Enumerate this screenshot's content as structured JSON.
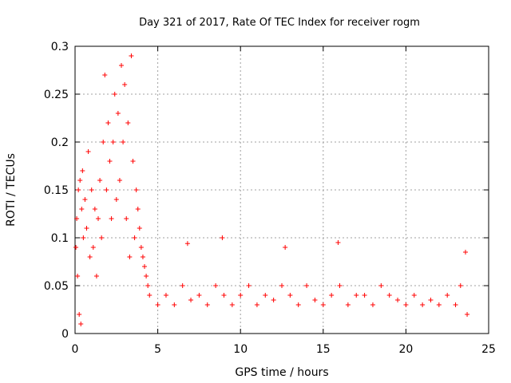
{
  "chart_data": {
    "type": "scatter",
    "title": "Day 321 of 2017, Rate Of TEC Index for receiver rogm",
    "xlabel": "GPS time / hours",
    "ylabel": "ROTI / TECUs",
    "xlim": [
      0,
      25
    ],
    "ylim": [
      0,
      0.3
    ],
    "x_ticks": [
      0,
      5,
      10,
      15,
      20,
      25
    ],
    "y_ticks": [
      0,
      0.05,
      0.1,
      0.15,
      0.2,
      0.25,
      0.3
    ],
    "x_tick_labels": [
      "0",
      "5",
      "10",
      "15",
      "20",
      "25"
    ],
    "y_tick_labels": [
      "0",
      "0.05",
      "0.1",
      "0.15",
      "0.2",
      "0.25",
      "0.3"
    ],
    "grid": true,
    "marker": "+",
    "marker_color": "#ff0000",
    "series": [
      {
        "name": "ROTI",
        "points": [
          [
            0.05,
            0.09
          ],
          [
            0.1,
            0.12
          ],
          [
            0.15,
            0.06
          ],
          [
            0.2,
            0.15
          ],
          [
            0.25,
            0.02
          ],
          [
            0.3,
            0.16
          ],
          [
            0.35,
            0.01
          ],
          [
            0.4,
            0.13
          ],
          [
            0.45,
            0.17
          ],
          [
            0.5,
            0.1
          ],
          [
            0.6,
            0.14
          ],
          [
            0.7,
            0.11
          ],
          [
            0.8,
            0.19
          ],
          [
            0.9,
            0.08
          ],
          [
            1.0,
            0.15
          ],
          [
            1.1,
            0.09
          ],
          [
            1.2,
            0.13
          ],
          [
            1.3,
            0.06
          ],
          [
            1.4,
            0.12
          ],
          [
            1.5,
            0.16
          ],
          [
            1.6,
            0.1
          ],
          [
            1.7,
            0.2
          ],
          [
            1.8,
            0.27
          ],
          [
            1.9,
            0.15
          ],
          [
            2.0,
            0.22
          ],
          [
            2.1,
            0.18
          ],
          [
            2.2,
            0.12
          ],
          [
            2.3,
            0.2
          ],
          [
            2.4,
            0.25
          ],
          [
            2.5,
            0.14
          ],
          [
            2.6,
            0.23
          ],
          [
            2.7,
            0.16
          ],
          [
            2.8,
            0.28
          ],
          [
            2.9,
            0.2
          ],
          [
            3.0,
            0.26
          ],
          [
            3.1,
            0.12
          ],
          [
            3.2,
            0.22
          ],
          [
            3.3,
            0.08
          ],
          [
            3.4,
            0.29
          ],
          [
            3.5,
            0.18
          ],
          [
            3.6,
            0.1
          ],
          [
            3.7,
            0.15
          ],
          [
            3.8,
            0.13
          ],
          [
            3.9,
            0.11
          ],
          [
            4.0,
            0.09
          ],
          [
            4.1,
            0.08
          ],
          [
            4.2,
            0.07
          ],
          [
            4.3,
            0.06
          ],
          [
            4.4,
            0.05
          ],
          [
            4.5,
            0.04
          ],
          [
            5.0,
            0.03
          ],
          [
            5.5,
            0.04
          ],
          [
            6.0,
            0.03
          ],
          [
            6.5,
            0.05
          ],
          [
            6.8,
            0.094
          ],
          [
            7.0,
            0.035
          ],
          [
            7.5,
            0.04
          ],
          [
            8.0,
            0.03
          ],
          [
            8.5,
            0.05
          ],
          [
            8.9,
            0.1
          ],
          [
            9.0,
            0.04
          ],
          [
            9.5,
            0.03
          ],
          [
            10.0,
            0.04
          ],
          [
            10.5,
            0.05
          ],
          [
            11.0,
            0.03
          ],
          [
            11.5,
            0.04
          ],
          [
            12.0,
            0.035
          ],
          [
            12.5,
            0.05
          ],
          [
            12.7,
            0.09
          ],
          [
            13.0,
            0.04
          ],
          [
            13.5,
            0.03
          ],
          [
            14.0,
            0.05
          ],
          [
            14.5,
            0.035
          ],
          [
            15.0,
            0.03
          ],
          [
            15.5,
            0.04
          ],
          [
            15.9,
            0.095
          ],
          [
            16.0,
            0.05
          ],
          [
            16.5,
            0.03
          ],
          [
            17.0,
            0.04
          ],
          [
            17.5,
            0.04
          ],
          [
            18.0,
            0.03
          ],
          [
            18.5,
            0.05
          ],
          [
            19.0,
            0.04
          ],
          [
            19.5,
            0.035
          ],
          [
            20.0,
            0.03
          ],
          [
            20.5,
            0.04
          ],
          [
            21.0,
            0.03
          ],
          [
            21.5,
            0.035
          ],
          [
            22.0,
            0.03
          ],
          [
            22.5,
            0.04
          ],
          [
            23.0,
            0.03
          ],
          [
            23.3,
            0.05
          ],
          [
            23.6,
            0.085
          ],
          [
            23.7,
            0.02
          ]
        ]
      }
    ]
  }
}
